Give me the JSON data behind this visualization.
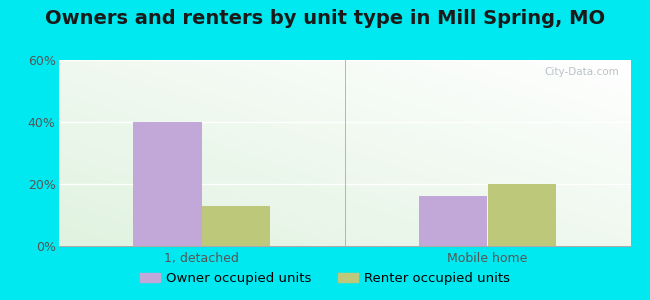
{
  "title": "Owners and renters by unit type in Mill Spring, MO",
  "categories": [
    "1, detached",
    "Mobile home"
  ],
  "series": [
    {
      "label": "Owner occupied units",
      "color": "#c2a8d8",
      "values": [
        40,
        16
      ]
    },
    {
      "label": "Renter occupied units",
      "color": "#bdc87a",
      "values": [
        13,
        20
      ]
    }
  ],
  "ylim": [
    0,
    60
  ],
  "yticks": [
    0,
    20,
    40,
    60
  ],
  "ytick_labels": [
    "0%",
    "20%",
    "40%",
    "60%"
  ],
  "bar_width": 0.12,
  "group_centers": [
    0.25,
    0.75
  ],
  "background_outer": "#00e8f0",
  "watermark": "City-Data.com",
  "title_fontsize": 14,
  "legend_fontsize": 9.5,
  "axis_fontsize": 9
}
